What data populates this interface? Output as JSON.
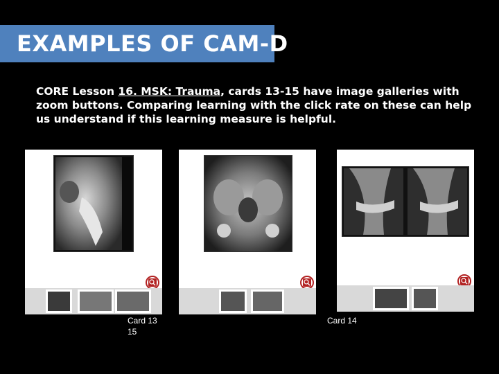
{
  "slide": {
    "title": "EXAMPLES OF CAM-D",
    "description_prefix": "CORE Lesson ",
    "lesson_link": "16. MSK: Trauma",
    "description_suffix": ", cards 13-15 have image galleries with zoom buttons.  Comparing learning with the click rate on these can help us understand if this learning measure is helpful."
  },
  "cards": [
    {
      "label_line1": "Card 13",
      "label_line2": "15"
    },
    {
      "label_line1": "",
      "label_line2": ""
    },
    {
      "label_line1": "Card 14",
      "label_line2": ""
    }
  ],
  "colors": {
    "title_bar": "#4f81bd",
    "zoom_ring": "#b22222",
    "background": "#000000"
  },
  "icons": {
    "zoom": "zoom-in-icon"
  }
}
